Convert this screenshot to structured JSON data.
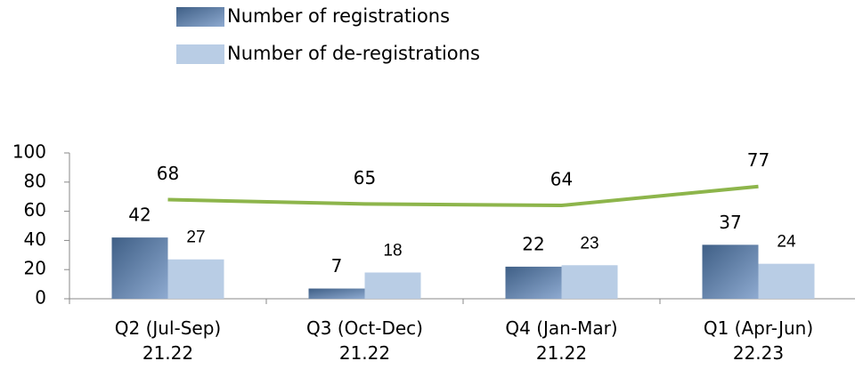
{
  "chart_data": {
    "type": "bar",
    "categories": [
      [
        "Q2 (Jul-Sep)",
        "21.22"
      ],
      [
        "Q3 (Oct-Dec)",
        "21.22"
      ],
      [
        "Q4 (Jan-Mar)",
        "21.22"
      ],
      [
        "Q1 (Apr-Jun)",
        "22.23"
      ]
    ],
    "series": [
      {
        "name": "Number of registrations",
        "color": "#5b7ba3",
        "values": [
          42,
          7,
          22,
          37
        ]
      },
      {
        "name": "Number of de-registrations",
        "color": "#b9cde5",
        "values": [
          27,
          18,
          23,
          24
        ]
      },
      {
        "type": "line",
        "color": "#8db54b",
        "values": [
          68,
          65,
          64,
          77
        ]
      }
    ],
    "ylim": [
      0,
      100
    ],
    "yticks": [
      0,
      20,
      40,
      60,
      80,
      100
    ],
    "legend": "top"
  }
}
